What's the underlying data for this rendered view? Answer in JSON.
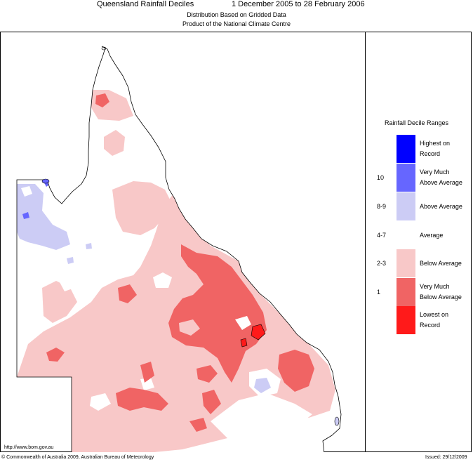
{
  "header": {
    "title": "Queensland Rainfall Deciles",
    "period": "1 December 2005 to 28 February 2006",
    "subtitle1": "Distribution Based on Gridded Data",
    "subtitle2": "Product of the National Climate Centre"
  },
  "legend": {
    "title": "Rainfall Decile Ranges",
    "items": [
      {
        "range": "",
        "label_line1": "Highest on",
        "label_line2": "Record",
        "color": "#0000ff"
      },
      {
        "range": "10",
        "label_line1": "Very Much",
        "label_line2": "Above Average",
        "color": "#6666ff"
      },
      {
        "range": "8-9",
        "label_line1": "Above Average",
        "label_line2": "",
        "color": "#ccccf5"
      },
      {
        "range": "4-7",
        "label_line1": "Average",
        "label_line2": "",
        "color": "#ffffff"
      },
      {
        "range": "2-3",
        "label_line1": "Below Average",
        "label_line2": "",
        "color": "#f8c8c8"
      },
      {
        "range": "1",
        "label_line1": "Very Much",
        "label_line2": "Below Average",
        "color": "#f06464"
      },
      {
        "range": "",
        "label_line1": "Lowest on",
        "label_line2": "Record",
        "color": "#ff1a1a"
      }
    ]
  },
  "footer": {
    "url": "http://www.bom.gov.au",
    "copyright": "© Commonwealth of Australia 2009, Australian Bureau of Meteorology",
    "issued": "Issued: 29/12/2009"
  }
}
